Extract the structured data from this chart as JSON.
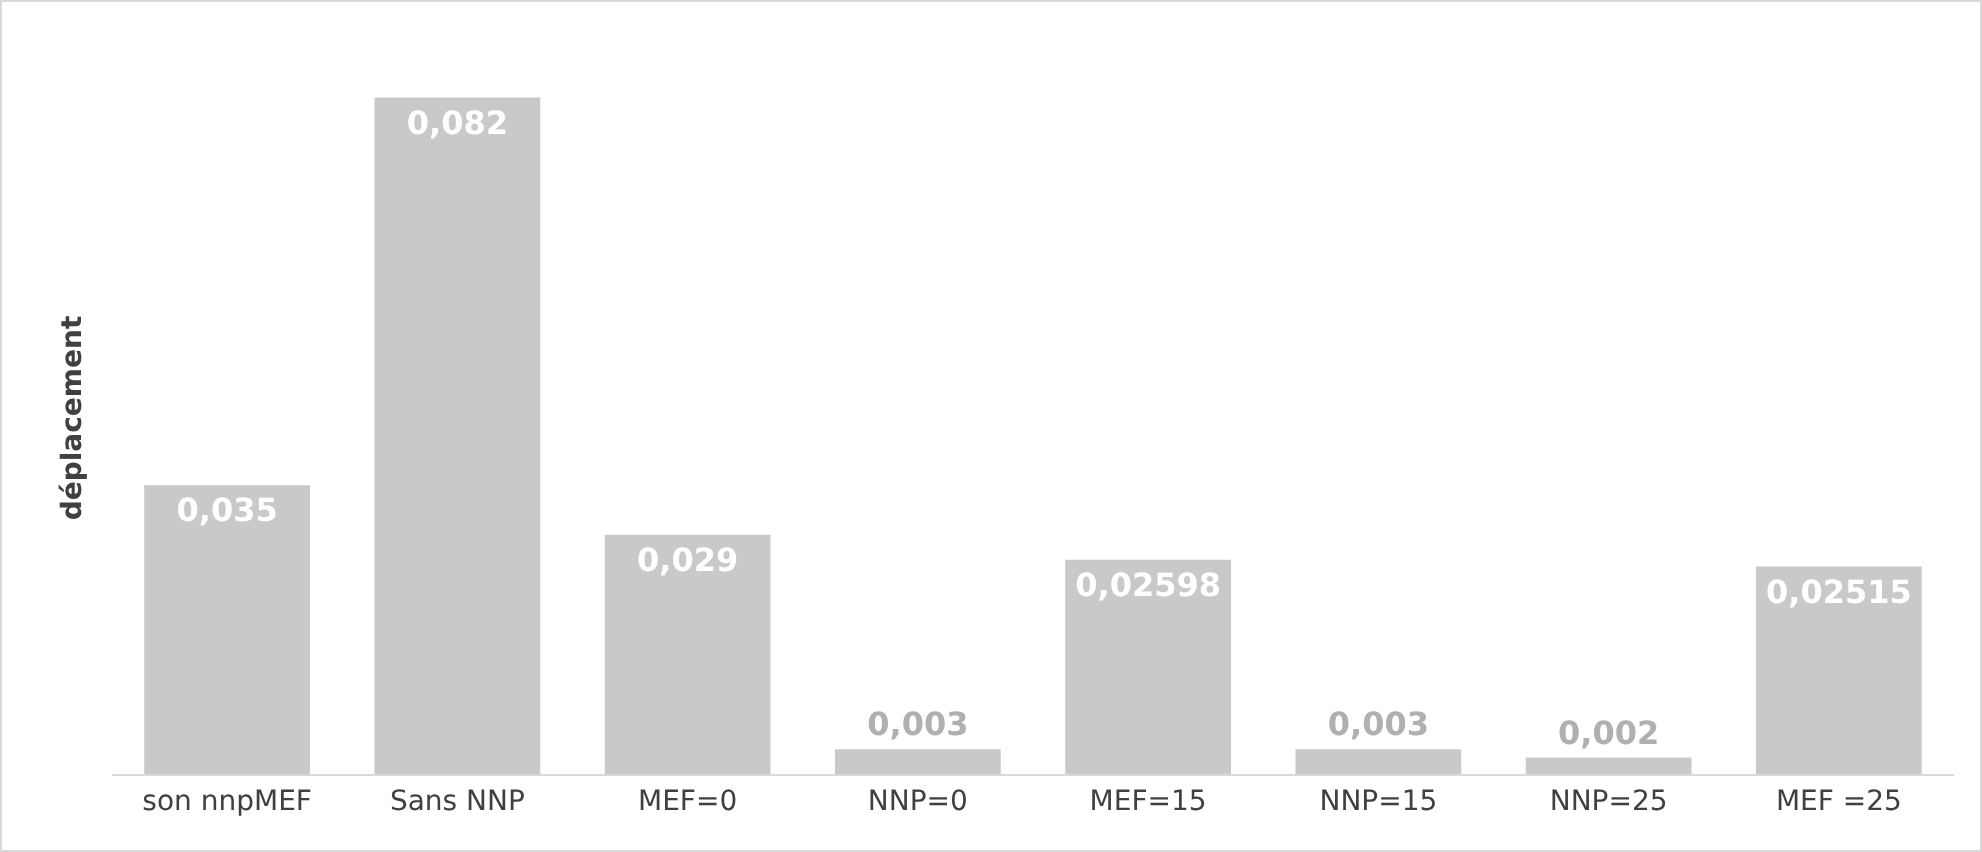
{
  "chart_data": {
    "type": "bar",
    "ylabel": "déplacement",
    "categories": [
      "son nnpMEF",
      "Sans NNP",
      "MEF=0",
      "NNP=0",
      "MEF=15",
      "NNP=15",
      "NNP=25",
      "MEF =25"
    ],
    "values": [
      0.035,
      0.082,
      0.029,
      0.003,
      0.02598,
      0.003,
      0.002,
      0.02515
    ],
    "value_labels": [
      "0,035",
      "0,082",
      "0,029",
      "0,003",
      "0,02598",
      "0,003",
      "0,002",
      "0,02515"
    ],
    "color": "#c9c9c9",
    "tick_labels": "x"
  }
}
